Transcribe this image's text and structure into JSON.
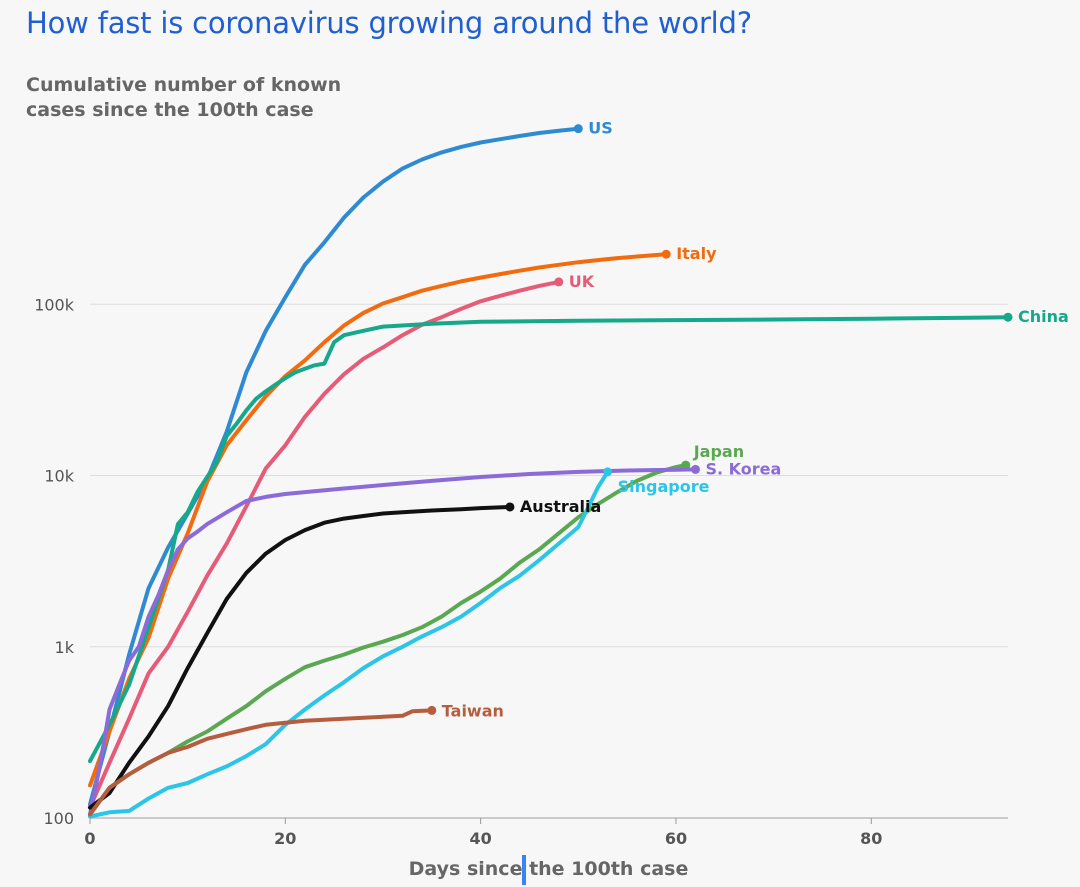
{
  "title": "How fast is coronavirus growing around the world?",
  "subtitle": "Cumulative number of known cases since the 100th case",
  "chart_data": {
    "type": "line",
    "title": "How fast is coronavirus growing around the world?",
    "subtitle": "Cumulative number of known cases since the 100th case",
    "xlabel": "Days since the 100th case",
    "ylabel": "",
    "yscale": "log",
    "xlim": [
      0,
      94
    ],
    "ylim": [
      100,
      1000000
    ],
    "x_ticks": [
      0,
      20,
      40,
      60,
      80
    ],
    "x_tick_labels": [
      "0",
      "20",
      "40",
      "60",
      "80"
    ],
    "y_ticks": [
      100,
      1000,
      10000,
      100000
    ],
    "y_tick_labels": [
      "100",
      "1k",
      "10k",
      "100k"
    ],
    "grid": "horizontal",
    "legend": "direct labels at line ends",
    "series": [
      {
        "name": "US",
        "color": "#2e8bd1",
        "points": [
          [
            0,
            120
          ],
          [
            2,
            320
          ],
          [
            4,
            900
          ],
          [
            6,
            2200
          ],
          [
            8,
            3800
          ],
          [
            10,
            6000
          ],
          [
            12,
            9500
          ],
          [
            14,
            18000
          ],
          [
            16,
            40000
          ],
          [
            18,
            70000
          ],
          [
            20,
            110000
          ],
          [
            22,
            170000
          ],
          [
            24,
            230000
          ],
          [
            26,
            320000
          ],
          [
            28,
            420000
          ],
          [
            30,
            520000
          ],
          [
            32,
            620000
          ],
          [
            34,
            700000
          ],
          [
            36,
            770000
          ],
          [
            38,
            830000
          ],
          [
            40,
            880000
          ],
          [
            42,
            920000
          ],
          [
            44,
            960000
          ],
          [
            46,
            1000000
          ],
          [
            48,
            1030000
          ],
          [
            50,
            1060000
          ]
        ]
      },
      {
        "name": "Italy",
        "color": "#f26b0f",
        "points": [
          [
            0,
            155
          ],
          [
            2,
            320
          ],
          [
            4,
            650
          ],
          [
            6,
            1130
          ],
          [
            8,
            2500
          ],
          [
            10,
            4600
          ],
          [
            12,
            9200
          ],
          [
            14,
            15000
          ],
          [
            16,
            21000
          ],
          [
            18,
            29000
          ],
          [
            20,
            38000
          ],
          [
            22,
            47000
          ],
          [
            24,
            60000
          ],
          [
            26,
            75000
          ],
          [
            28,
            89000
          ],
          [
            30,
            101000
          ],
          [
            32,
            110000
          ],
          [
            34,
            120000
          ],
          [
            36,
            128000
          ],
          [
            38,
            136000
          ],
          [
            40,
            143000
          ],
          [
            42,
            150000
          ],
          [
            44,
            157000
          ],
          [
            46,
            164000
          ],
          [
            48,
            170000
          ],
          [
            50,
            176000
          ],
          [
            52,
            181000
          ],
          [
            54,
            186000
          ],
          [
            56,
            190000
          ],
          [
            58,
            194000
          ],
          [
            59,
            196000
          ]
        ]
      },
      {
        "name": "UK",
        "color": "#e55b78",
        "points": [
          [
            0,
            115
          ],
          [
            2,
            210
          ],
          [
            4,
            380
          ],
          [
            6,
            700
          ],
          [
            8,
            1000
          ],
          [
            10,
            1600
          ],
          [
            12,
            2600
          ],
          [
            14,
            4000
          ],
          [
            16,
            6600
          ],
          [
            18,
            11000
          ],
          [
            20,
            15000
          ],
          [
            22,
            22000
          ],
          [
            24,
            30000
          ],
          [
            26,
            39000
          ],
          [
            28,
            48000
          ],
          [
            30,
            56000
          ],
          [
            32,
            66000
          ],
          [
            34,
            76000
          ],
          [
            36,
            84000
          ],
          [
            38,
            94000
          ],
          [
            40,
            104000
          ],
          [
            42,
            112000
          ],
          [
            44,
            120000
          ],
          [
            46,
            128000
          ],
          [
            48,
            135000
          ]
        ]
      },
      {
        "name": "China",
        "color": "#15a88b",
        "points": [
          [
            0,
            215
          ],
          [
            2,
            350
          ],
          [
            4,
            600
          ],
          [
            6,
            1300
          ],
          [
            8,
            2800
          ],
          [
            9,
            5200
          ],
          [
            10,
            6100
          ],
          [
            11,
            8000
          ],
          [
            12,
            9800
          ],
          [
            13,
            12000
          ],
          [
            14,
            17000
          ],
          [
            15,
            20000
          ],
          [
            16,
            24000
          ],
          [
            17,
            28000
          ],
          [
            18,
            31000
          ],
          [
            19,
            34000
          ],
          [
            20,
            37000
          ],
          [
            21,
            40000
          ],
          [
            22,
            42000
          ],
          [
            23,
            44000
          ],
          [
            24,
            45000
          ],
          [
            25,
            60000
          ],
          [
            26,
            66000
          ],
          [
            28,
            70000
          ],
          [
            30,
            74000
          ],
          [
            35,
            77000
          ],
          [
            40,
            79000
          ],
          [
            50,
            80000
          ],
          [
            60,
            80800
          ],
          [
            70,
            81500
          ],
          [
            80,
            82300
          ],
          [
            90,
            83500
          ],
          [
            94,
            84000
          ]
        ]
      },
      {
        "name": "Japan",
        "color": "#5aa852",
        "points": [
          [
            0,
            105
          ],
          [
            2,
            150
          ],
          [
            4,
            180
          ],
          [
            6,
            210
          ],
          [
            8,
            240
          ],
          [
            10,
            280
          ],
          [
            12,
            320
          ],
          [
            14,
            380
          ],
          [
            16,
            450
          ],
          [
            18,
            550
          ],
          [
            20,
            650
          ],
          [
            22,
            760
          ],
          [
            24,
            830
          ],
          [
            26,
            900
          ],
          [
            28,
            990
          ],
          [
            30,
            1070
          ],
          [
            32,
            1170
          ],
          [
            34,
            1300
          ],
          [
            36,
            1500
          ],
          [
            38,
            1800
          ],
          [
            40,
            2100
          ],
          [
            42,
            2500
          ],
          [
            44,
            3100
          ],
          [
            46,
            3700
          ],
          [
            48,
            4600
          ],
          [
            50,
            5700
          ],
          [
            52,
            6800
          ],
          [
            54,
            8000
          ],
          [
            56,
            9300
          ],
          [
            58,
            10400
          ],
          [
            60,
            11200
          ],
          [
            61,
            11500
          ]
        ]
      },
      {
        "name": "S. Korea",
        "color": "#8a6bd8",
        "points": [
          [
            0,
            105
          ],
          [
            1,
            200
          ],
          [
            2,
            430
          ],
          [
            3,
            600
          ],
          [
            4,
            830
          ],
          [
            5,
            1000
          ],
          [
            6,
            1500
          ],
          [
            7,
            2000
          ],
          [
            8,
            2800
          ],
          [
            9,
            3700
          ],
          [
            10,
            4300
          ],
          [
            11,
            4700
          ],
          [
            12,
            5200
          ],
          [
            14,
            6100
          ],
          [
            16,
            7100
          ],
          [
            18,
            7500
          ],
          [
            20,
            7800
          ],
          [
            25,
            8300
          ],
          [
            30,
            8800
          ],
          [
            35,
            9300
          ],
          [
            40,
            9800
          ],
          [
            45,
            10200
          ],
          [
            50,
            10500
          ],
          [
            55,
            10700
          ],
          [
            60,
            10800
          ],
          [
            62,
            10850
          ]
        ]
      },
      {
        "name": "Singapore",
        "color": "#2bc5e8",
        "points": [
          [
            0,
            102
          ],
          [
            2,
            108
          ],
          [
            4,
            110
          ],
          [
            6,
            130
          ],
          [
            8,
            150
          ],
          [
            10,
            160
          ],
          [
            12,
            180
          ],
          [
            14,
            200
          ],
          [
            16,
            230
          ],
          [
            18,
            270
          ],
          [
            20,
            350
          ],
          [
            22,
            430
          ],
          [
            24,
            520
          ],
          [
            26,
            620
          ],
          [
            28,
            750
          ],
          [
            30,
            880
          ],
          [
            32,
            1000
          ],
          [
            34,
            1150
          ],
          [
            36,
            1300
          ],
          [
            38,
            1500
          ],
          [
            40,
            1800
          ],
          [
            42,
            2200
          ],
          [
            44,
            2600
          ],
          [
            46,
            3200
          ],
          [
            48,
            4000
          ],
          [
            50,
            5000
          ],
          [
            51,
            6500
          ],
          [
            52,
            8500
          ],
          [
            53,
            10500
          ]
        ]
      },
      {
        "name": "Australia",
        "color": "#111111",
        "points": [
          [
            0,
            115
          ],
          [
            2,
            140
          ],
          [
            4,
            210
          ],
          [
            6,
            300
          ],
          [
            8,
            450
          ],
          [
            10,
            750
          ],
          [
            12,
            1200
          ],
          [
            14,
            1900
          ],
          [
            16,
            2700
          ],
          [
            18,
            3500
          ],
          [
            20,
            4200
          ],
          [
            22,
            4800
          ],
          [
            24,
            5300
          ],
          [
            26,
            5600
          ],
          [
            28,
            5800
          ],
          [
            30,
            6000
          ],
          [
            32,
            6100
          ],
          [
            35,
            6250
          ],
          [
            38,
            6350
          ],
          [
            40,
            6450
          ],
          [
            43,
            6550
          ]
        ]
      },
      {
        "name": "Taiwan",
        "color": "#b55d3f",
        "points": [
          [
            0,
            105
          ],
          [
            2,
            150
          ],
          [
            4,
            180
          ],
          [
            6,
            210
          ],
          [
            8,
            240
          ],
          [
            10,
            260
          ],
          [
            12,
            290
          ],
          [
            14,
            310
          ],
          [
            16,
            330
          ],
          [
            18,
            350
          ],
          [
            20,
            360
          ],
          [
            22,
            370
          ],
          [
            24,
            375
          ],
          [
            26,
            380
          ],
          [
            28,
            385
          ],
          [
            30,
            390
          ],
          [
            32,
            395
          ],
          [
            33,
            420
          ],
          [
            35,
            425
          ]
        ]
      }
    ]
  }
}
